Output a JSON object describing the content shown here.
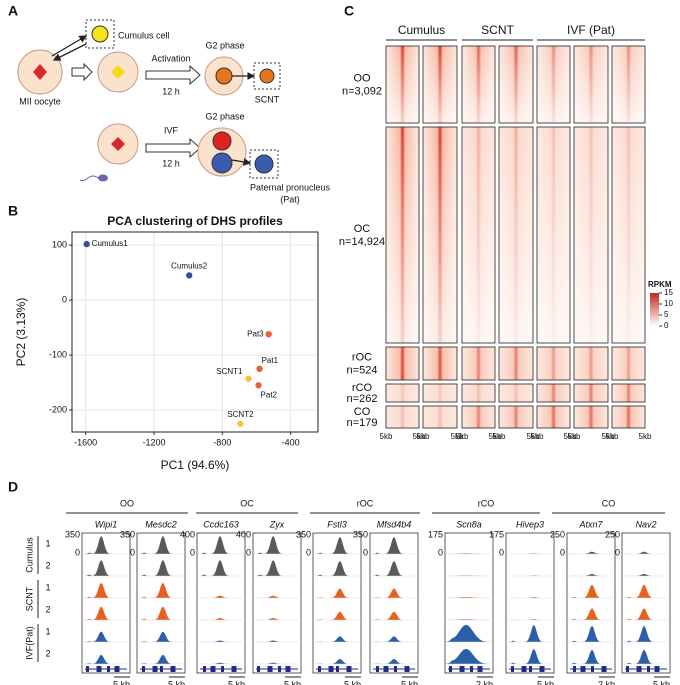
{
  "panel_labels": [
    "A",
    "B",
    "C",
    "D"
  ],
  "panel_a": {
    "cumulus_cell": "Cumulus cell",
    "mii_oocyte": "MII oocyte",
    "activation": "Activation",
    "time1": "12 h",
    "g2_top": "G2 phase",
    "scnt": "SCNT",
    "ivf": "IVF",
    "time2": "12 h",
    "g2_bottom": "G2 phase",
    "pat_line1": "Paternal pronucleus",
    "pat_line2": "(Pat)"
  },
  "chart_data": {
    "type": "scatter",
    "title": "PCA clustering of DHS profiles",
    "x_label": "PC1 (94.6%)",
    "y_label": "PC2 (3.13%)",
    "labels": [
      "Cumulus1",
      "Cumulus2",
      "Pat3",
      "Pat1",
      "SCNT1",
      "Pat2",
      "SCNT2"
    ],
    "colors": [
      "#3f4a9c",
      "#3f4a9c",
      "#e8603c",
      "#e8603c",
      "#f5c342",
      "#e8603c",
      "#f5c342"
    ],
    "x": [
      -1594,
      -994,
      -529,
      -582,
      -647,
      -588,
      -694
    ],
    "values": [
      102,
      45,
      -62,
      -125,
      -143,
      -155,
      -225
    ],
    "xlim": [
      -1680,
      -240
    ],
    "ylim": [
      -240,
      124
    ],
    "xticks": [
      -1600,
      -1200,
      -800,
      -400
    ],
    "yticks": [
      -200,
      -100,
      0,
      100
    ],
    "grid": true
  },
  "panel_c": {
    "groups": [
      "Cumulus",
      "SCNT",
      "IVF (Pat)"
    ],
    "rows": [
      {
        "name": "OO",
        "count": "n=3,092"
      },
      {
        "name": "OC",
        "count": "n=14,924"
      },
      {
        "name": "rOC",
        "count": "n=524"
      },
      {
        "name": "rCO",
        "count": "n=262"
      },
      {
        "name": "CO",
        "count": "n=179"
      }
    ],
    "bin_label": "5kb",
    "colorbar": {
      "title": "RPKM",
      "lim": [
        0,
        15
      ],
      "ticks": [
        0,
        5,
        10,
        15
      ]
    }
  },
  "panel_d": {
    "groups": [
      {
        "name": "OO",
        "genes": [
          {
            "name": "Wipi1",
            "ymin": 0,
            "ymax": 350,
            "scale": "5 kb"
          },
          {
            "name": "Mesdc2",
            "ymin": 0,
            "ymax": 350,
            "scale": "5 kb"
          }
        ]
      },
      {
        "name": "OC",
        "genes": [
          {
            "name": "Ccdc163",
            "ymin": 0,
            "ymax": 400,
            "scale": "5 kb"
          },
          {
            "name": "Zyx",
            "ymin": 0,
            "ymax": 400,
            "scale": "5 kb"
          }
        ]
      },
      {
        "name": "rOC",
        "genes": [
          {
            "name": "Fstl3",
            "ymin": 0,
            "ymax": 350,
            "scale": "5 kb"
          },
          {
            "name": "Mfsd4b4",
            "ymin": 0,
            "ymax": 350,
            "scale": "5 kb"
          }
        ]
      },
      {
        "name": "rCO",
        "genes": [
          {
            "name": "Scn8a",
            "ymin": 0,
            "ymax": 175,
            "scale": "2 kb"
          },
          {
            "name": "Hivep3",
            "ymin": 0,
            "ymax": 175,
            "scale": "5 kb"
          }
        ]
      },
      {
        "name": "CO",
        "genes": [
          {
            "name": "Atxn7",
            "ymin": 0,
            "ymax": 250,
            "scale": "2 kb"
          },
          {
            "name": "Nav2",
            "ymin": 0,
            "ymax": 250,
            "scale": "5 kb"
          }
        ]
      }
    ],
    "conditions": [
      {
        "name": "Cumulus",
        "reps": [
          "1",
          "2"
        ]
      },
      {
        "name": "SCNT",
        "reps": [
          "1",
          "2"
        ]
      },
      {
        "name": "IVF(Pat)",
        "reps": [
          "1",
          "2"
        ]
      }
    ]
  }
}
